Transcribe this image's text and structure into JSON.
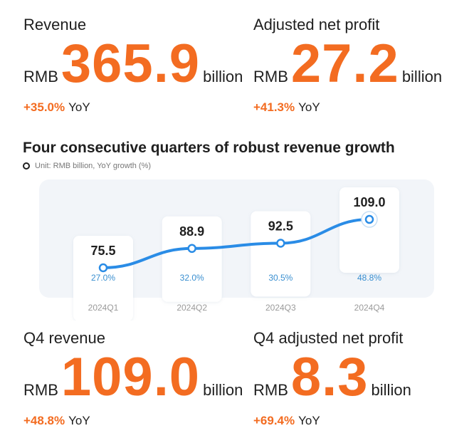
{
  "kpis": {
    "revenue": {
      "label": "Revenue",
      "currency": "RMB",
      "value": "365.9",
      "unit": "billion",
      "growth": "+35.0%",
      "growth_suffix": "YoY"
    },
    "adj_profit": {
      "label": "Adjusted net profit",
      "currency": "RMB",
      "value": "27.2",
      "unit": "billion",
      "growth": "+41.3%",
      "growth_suffix": "YoY"
    },
    "q4_revenue": {
      "label": "Q4 revenue",
      "currency": "RMB",
      "value": "109.0",
      "unit": "billion",
      "growth": "+48.8%",
      "growth_suffix": "YoY"
    },
    "q4_adj_profit": {
      "label": "Q4 adjusted net profit",
      "currency": "RMB",
      "value": "8.3",
      "unit": "billion",
      "growth": "+69.4%",
      "growth_suffix": "YoY"
    }
  },
  "colors": {
    "accent": "#f36c21",
    "line": "#2a8ce6",
    "growth_text": "#3a8fd0",
    "panel": "#f2f5f9"
  },
  "chart_data": {
    "type": "line",
    "title": "Four consecutive quarters of robust revenue growth",
    "subtitle": "Unit: RMB billion, YoY growth (%)",
    "categories": [
      "2024Q1",
      "2024Q2",
      "2024Q3",
      "2024Q4"
    ],
    "values": [
      75.5,
      88.9,
      92.5,
      109.0
    ],
    "value_labels": [
      "75.5",
      "88.9",
      "92.5",
      "109.0"
    ],
    "growth_labels": [
      "27.0%",
      "32.0%",
      "30.5%",
      "48.8%"
    ],
    "grid": false
  }
}
